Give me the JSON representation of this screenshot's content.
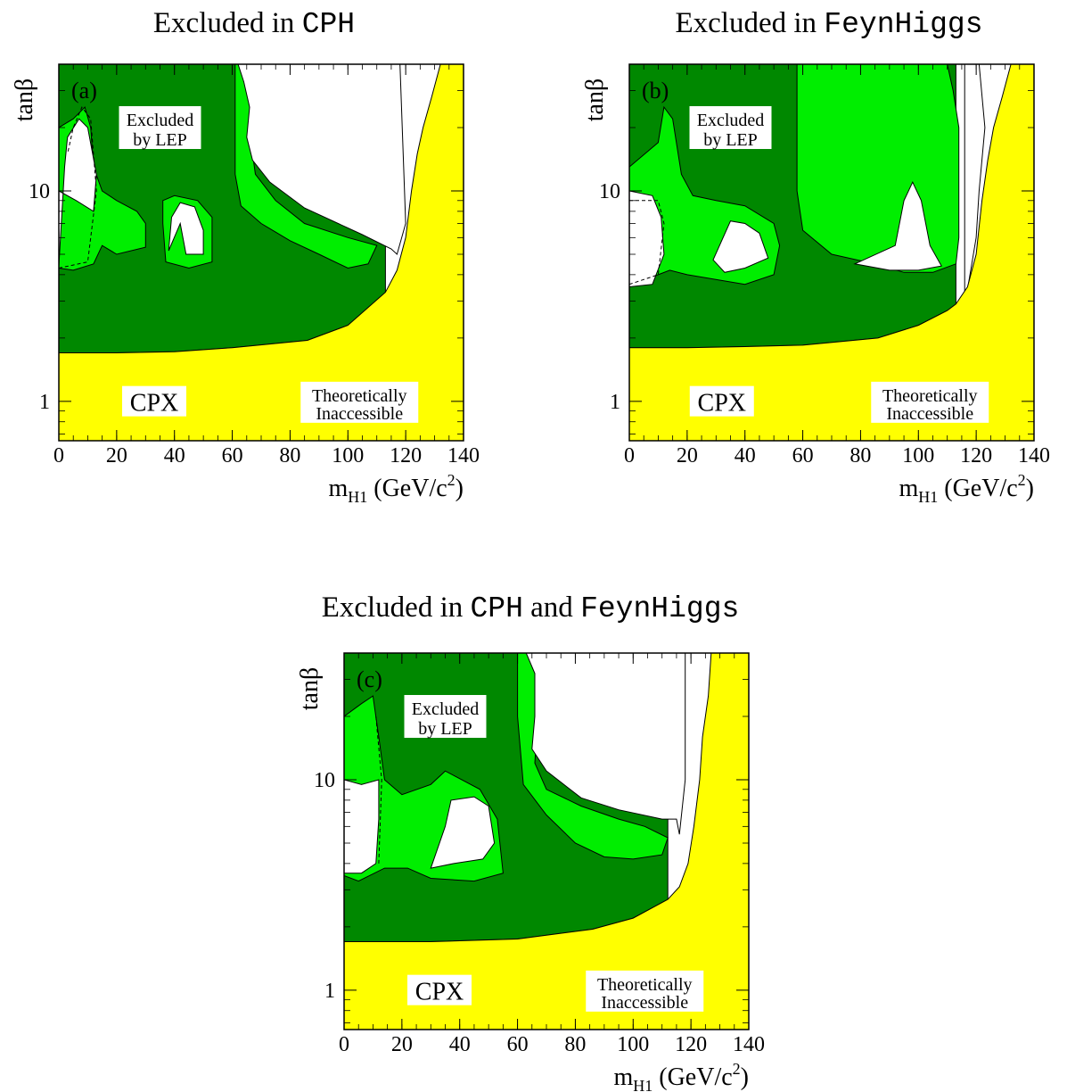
{
  "panels": [
    {
      "title": {
        "pre": "Excluded in ",
        "code1": "CPH",
        "mid": "",
        "code2": ""
      },
      "tag": "(a)"
    },
    {
      "title": {
        "pre": "Excluded in ",
        "code1": "FeynHiggs",
        "mid": "",
        "code2": ""
      },
      "tag": "(b)"
    },
    {
      "title": {
        "pre": "Excluded in ",
        "code1": "CPH",
        "mid": " and ",
        "code2": "FeynHiggs"
      },
      "tag": "(c)"
    }
  ],
  "labels": {
    "excluded_line1": "Excluded",
    "excluded_line2": "by LEP",
    "scenario": "CPX",
    "theory_line1": "Theoretically",
    "theory_line2": "Inaccessible"
  },
  "colors": {
    "lep_excluded": "#008800",
    "code_excluded": "#00ee00",
    "theoretically_inaccessible": "#ffff00",
    "allowed": "#ffffff"
  },
  "chart_data": [
    {
      "type": "area",
      "panel": "(a)",
      "xlabel": "m_H1 (GeV/c^2)",
      "ylabel": "tanβ",
      "xlim": [
        0,
        140
      ],
      "ylim": [
        0.65,
        40
      ],
      "yscale": "log",
      "xticks": [
        0,
        20,
        40,
        60,
        80,
        100,
        120,
        140
      ],
      "yticks": [
        1,
        10
      ],
      "theory_boundary": {
        "x": [
          113,
          117,
          120,
          122,
          124,
          126,
          129,
          132
        ],
        "y": [
          3.3,
          4.2,
          6,
          10,
          15,
          20,
          28,
          40
        ]
      },
      "lep_lower_boundary": {
        "x": [
          0,
          20,
          40,
          60,
          86,
          100,
          113
        ],
        "y": [
          1.7,
          1.7,
          1.72,
          1.8,
          1.95,
          2.3,
          3.3
        ]
      }
    },
    {
      "type": "area",
      "panel": "(b)",
      "xlabel": "m_H1 (GeV/c^2)",
      "ylabel": "tanβ",
      "xlim": [
        0,
        140
      ],
      "ylim": [
        0.65,
        40
      ],
      "yscale": "log",
      "xticks": [
        0,
        20,
        40,
        60,
        80,
        100,
        120,
        140
      ],
      "yticks": [
        1,
        10
      ],
      "theory_boundary": {
        "x": [
          113,
          117,
          120,
          122,
          124,
          126,
          129,
          132
        ],
        "y": [
          2.9,
          3.5,
          5,
          9,
          14,
          20,
          28,
          40
        ]
      },
      "lep_lower_boundary": {
        "x": [
          0,
          20,
          40,
          60,
          86,
          100,
          110,
          113
        ],
        "y": [
          1.8,
          1.8,
          1.82,
          1.85,
          2.0,
          2.3,
          2.7,
          2.9
        ]
      }
    },
    {
      "type": "area",
      "panel": "(c)",
      "xlabel": "m_H1 (GeV/c^2)",
      "ylabel": "tanβ",
      "xlim": [
        0,
        140
      ],
      "ylim": [
        0.65,
        40
      ],
      "yscale": "log",
      "xticks": [
        0,
        20,
        40,
        60,
        80,
        100,
        120,
        140
      ],
      "yticks": [
        1,
        10
      ],
      "theory_boundary": {
        "x": [
          112,
          116,
          119,
          121,
          123,
          124,
          126,
          127
        ],
        "y": [
          2.7,
          3.1,
          4,
          6,
          10,
          16,
          25,
          40
        ]
      },
      "lep_lower_boundary": {
        "x": [
          0,
          30,
          60,
          86,
          100,
          112
        ],
        "y": [
          1.7,
          1.7,
          1.75,
          1.95,
          2.2,
          2.7
        ]
      }
    }
  ]
}
